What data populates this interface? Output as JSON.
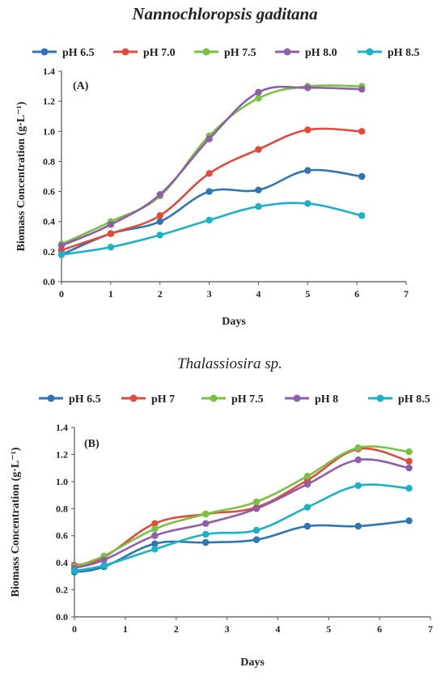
{
  "chart_data": [
    {
      "type": "line",
      "title": "Nannochloropsis gaditana",
      "panel_label": "(A)",
      "xlabel": "Days",
      "ylabel": "Biomass Concentration (g·L⁻¹)",
      "xlim": [
        0,
        7
      ],
      "ylim": [
        0,
        1.4
      ],
      "x_ticks": [
        "0",
        "1",
        "2",
        "3",
        "4",
        "5",
        "6",
        "7"
      ],
      "y_ticks": [
        "0.0",
        "0.2",
        "0.4",
        "0.6",
        "0.8",
        "1.0",
        "1.2",
        "1.4"
      ],
      "x_tick_values": [
        0,
        1,
        2,
        3,
        4,
        5,
        6,
        7
      ],
      "y_tick_values": [
        0,
        0.2,
        0.4,
        0.6,
        0.8,
        1.0,
        1.2,
        1.4
      ],
      "grid": false,
      "legend_position": "top",
      "series": [
        {
          "name": "pH 6.5",
          "color": "#2e75b6",
          "x": [
            0,
            1,
            2,
            3,
            4,
            5,
            6.1
          ],
          "y": [
            0.18,
            0.32,
            0.4,
            0.6,
            0.61,
            0.74,
            0.7
          ]
        },
        {
          "name": "pH 7.0",
          "color": "#e04b3a",
          "x": [
            0,
            1,
            2,
            3,
            4,
            5,
            6.1
          ],
          "y": [
            0.21,
            0.32,
            0.44,
            0.72,
            0.88,
            1.01,
            1.0
          ]
        },
        {
          "name": "pH 7.5",
          "color": "#7ac143",
          "x": [
            0,
            1,
            2,
            3,
            4,
            5,
            6.1
          ],
          "y": [
            0.25,
            0.4,
            0.57,
            0.97,
            1.22,
            1.3,
            1.3
          ]
        },
        {
          "name": "pH 8.0",
          "color": "#8e5ea8",
          "x": [
            0,
            1,
            2,
            3,
            4,
            5,
            6.1
          ],
          "y": [
            0.24,
            0.38,
            0.58,
            0.95,
            1.26,
            1.29,
            1.28
          ]
        },
        {
          "name": "pH 8.5",
          "color": "#19b2c9",
          "x": [
            0,
            1,
            2,
            3,
            4,
            5,
            6.1
          ],
          "y": [
            0.18,
            0.23,
            0.31,
            0.41,
            0.5,
            0.52,
            0.44
          ]
        }
      ]
    },
    {
      "type": "line",
      "title": "Thalassiosira sp.",
      "panel_label": "(B)",
      "xlabel": "Days",
      "ylabel": "Biomass Concentration (g·L⁻¹)",
      "xlim": [
        0,
        7
      ],
      "ylim": [
        0,
        1.4
      ],
      "x_ticks": [
        "0",
        "1",
        "2",
        "3",
        "4",
        "5",
        "6",
        "7"
      ],
      "y_ticks": [
        "0.0",
        "0.2",
        "0.4",
        "0.6",
        "0.8",
        "1.0",
        "1.2",
        "1.4"
      ],
      "x_tick_values": [
        0,
        1,
        2,
        3,
        4,
        5,
        6,
        7
      ],
      "y_tick_values": [
        0,
        0.2,
        0.4,
        0.6,
        0.8,
        1.0,
        1.2,
        1.4
      ],
      "grid": false,
      "legend_position": "top",
      "series": [
        {
          "name": "pH 6.5",
          "color": "#2e75b6",
          "x": [
            0,
            0.58,
            1.58,
            2.58,
            3.58,
            4.58,
            5.58,
            6.58
          ],
          "y": [
            0.33,
            0.37,
            0.54,
            0.55,
            0.57,
            0.67,
            0.67,
            0.71
          ]
        },
        {
          "name": "pH 7",
          "color": "#e04b3a",
          "x": [
            0,
            0.58,
            1.58,
            2.58,
            3.58,
            4.58,
            5.58,
            6.58
          ],
          "y": [
            0.38,
            0.44,
            0.69,
            0.76,
            0.81,
            1.01,
            1.24,
            1.15
          ]
        },
        {
          "name": "pH 7.5",
          "color": "#7ac143",
          "x": [
            0,
            0.58,
            1.58,
            2.58,
            3.58,
            4.58,
            5.58,
            6.58
          ],
          "y": [
            0.37,
            0.45,
            0.65,
            0.76,
            0.85,
            1.04,
            1.25,
            1.22
          ]
        },
        {
          "name": "pH 8",
          "color": "#8e5ea8",
          "x": [
            0,
            0.58,
            1.58,
            2.58,
            3.58,
            4.58,
            5.58,
            6.58
          ],
          "y": [
            0.36,
            0.42,
            0.6,
            0.69,
            0.8,
            0.98,
            1.16,
            1.1
          ]
        },
        {
          "name": "pH 8.5",
          "color": "#19b2c9",
          "x": [
            0,
            0.58,
            1.58,
            2.58,
            3.58,
            4.58,
            5.58,
            6.58
          ],
          "y": [
            0.34,
            0.38,
            0.5,
            0.61,
            0.64,
            0.81,
            0.97,
            0.95
          ]
        }
      ]
    }
  ]
}
